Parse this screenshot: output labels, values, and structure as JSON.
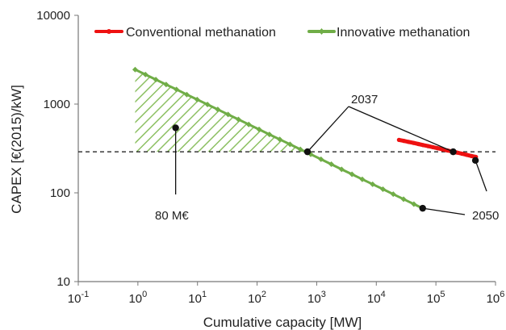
{
  "chart_data": {
    "type": "line",
    "xlabel": "Cumulative capacity [MW]",
    "ylabel": "CAPEX [€(2015)/kW]",
    "xscale": "log",
    "yscale": "log",
    "xlim": [
      0.1,
      1000000
    ],
    "ylim": [
      10,
      10000
    ],
    "grid": false,
    "legend_position": "top",
    "x_ticks": [
      {
        "value": 0.1,
        "base": "10",
        "exp": "-1"
      },
      {
        "value": 1,
        "base": "10",
        "exp": "0"
      },
      {
        "value": 10,
        "base": "10",
        "exp": "1"
      },
      {
        "value": 100,
        "base": "10",
        "exp": "2"
      },
      {
        "value": 1000,
        "base": "10",
        "exp": "3"
      },
      {
        "value": 10000,
        "base": "10",
        "exp": "4"
      },
      {
        "value": 100000,
        "base": "10",
        "exp": "5"
      },
      {
        "value": 1000000,
        "base": "10",
        "exp": "6"
      }
    ],
    "y_ticks": [
      {
        "value": 10,
        "label": "10"
      },
      {
        "value": 100,
        "label": "100"
      },
      {
        "value": 1000,
        "label": "1000"
      },
      {
        "value": 10000,
        "label": "10000"
      }
    ],
    "series": [
      {
        "name": "Conventional methanation",
        "color": "#ee1111",
        "x": [
          24000,
          29000,
          35000,
          42000,
          51000,
          61000,
          74000,
          89000,
          107000,
          129000,
          156000,
          188000,
          226000,
          273000,
          329000,
          397000,
          470000
        ],
        "y": [
          395,
          385,
          375,
          365,
          355,
          345,
          336,
          327,
          318,
          309,
          300,
          292,
          284,
          276,
          268,
          260,
          254
        ]
      },
      {
        "name": "Innovative methanation",
        "color": "#70ad47",
        "x": [
          0.9,
          1.34,
          2.0,
          2.98,
          4.44,
          6.62,
          9.87,
          14.7,
          21.9,
          32.6,
          48.6,
          72.4,
          108,
          161,
          240,
          357,
          532,
          793,
          1182,
          1760,
          2620,
          3910,
          5820,
          8670,
          12920,
          19250,
          28680,
          42720,
          60000
        ],
        "y": [
          2450,
          2150,
          1890,
          1660,
          1460,
          1280,
          1125,
          990,
          870,
          764,
          672,
          590,
          518,
          455,
          400,
          352,
          309,
          272,
          239,
          210,
          184,
          162,
          142,
          125,
          110,
          96.6,
          84.9,
          74.6,
          67
        ]
      }
    ],
    "reference_line": {
      "y": 290,
      "style": "dashed"
    },
    "shaded_area": {
      "x_from": 0.9,
      "x_to": 700,
      "y_floor": 290,
      "pattern": "diagonal-hatch"
    },
    "annotations": [
      {
        "text": "80 M€",
        "point": {
          "x": 4.3,
          "y": 540
        }
      },
      {
        "text": "2037",
        "points": [
          {
            "x": 700,
            "y": 290
          },
          {
            "x": 195000,
            "y": 290
          }
        ]
      },
      {
        "text": "2050",
        "points": [
          {
            "x": 60000,
            "y": 67
          },
          {
            "x": 460000,
            "y": 232
          }
        ]
      }
    ]
  }
}
